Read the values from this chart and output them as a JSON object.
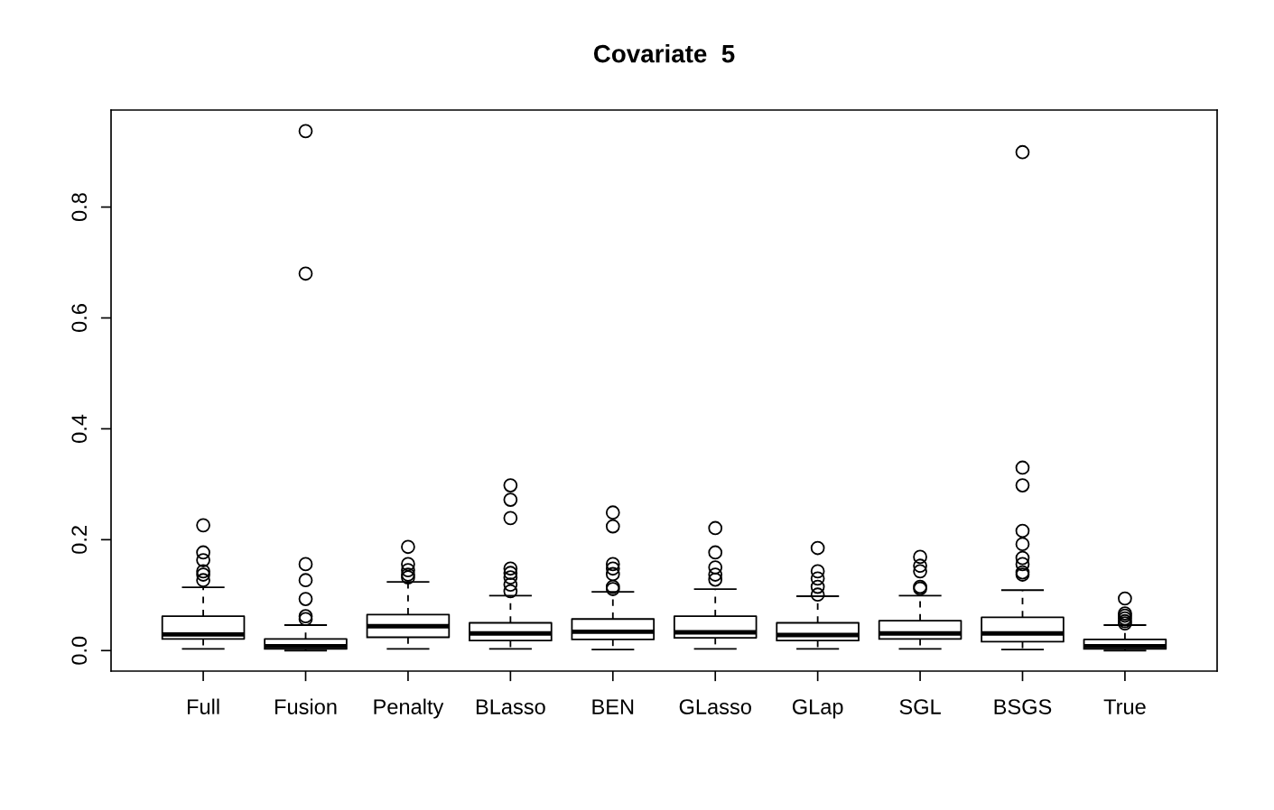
{
  "chart_data": {
    "type": "box",
    "title": "Covariate  5",
    "categories": [
      "Full",
      "Fusion",
      "Penalty",
      "BLasso",
      "BEN",
      "GLasso",
      "GLap",
      "SGL",
      "BSGS",
      "True"
    ],
    "boxes": [
      {
        "low": 0.003,
        "q1": 0.021,
        "median": 0.029,
        "q3": 0.062,
        "high": 0.114,
        "outliers": [
          0.226,
          0.177,
          0.163,
          0.143,
          0.137,
          0.127
        ]
      },
      {
        "low": 0.0,
        "q1": 0.003,
        "median": 0.008,
        "q3": 0.021,
        "high": 0.046,
        "outliers": [
          0.937,
          0.68,
          0.156,
          0.127,
          0.093,
          0.062,
          0.057
        ]
      },
      {
        "low": 0.003,
        "q1": 0.024,
        "median": 0.044,
        "q3": 0.065,
        "high": 0.124,
        "outliers": [
          0.187,
          0.156,
          0.145,
          0.137,
          0.132
        ]
      },
      {
        "low": 0.003,
        "q1": 0.018,
        "median": 0.031,
        "q3": 0.05,
        "high": 0.099,
        "outliers": [
          0.298,
          0.272,
          0.239,
          0.148,
          0.14,
          0.132,
          0.119,
          0.107
        ]
      },
      {
        "low": 0.002,
        "q1": 0.02,
        "median": 0.034,
        "q3": 0.057,
        "high": 0.106,
        "outliers": [
          0.249,
          0.224,
          0.156,
          0.148,
          0.138,
          0.115,
          0.111
        ]
      },
      {
        "low": 0.003,
        "q1": 0.023,
        "median": 0.033,
        "q3": 0.062,
        "high": 0.111,
        "outliers": [
          0.221,
          0.177,
          0.15,
          0.137,
          0.128
        ]
      },
      {
        "low": 0.003,
        "q1": 0.018,
        "median": 0.028,
        "q3": 0.05,
        "high": 0.098,
        "outliers": [
          0.185,
          0.143,
          0.13,
          0.115,
          0.101
        ]
      },
      {
        "low": 0.003,
        "q1": 0.021,
        "median": 0.031,
        "q3": 0.054,
        "high": 0.099,
        "outliers": [
          0.169,
          0.153,
          0.143,
          0.115,
          0.112
        ]
      },
      {
        "low": 0.002,
        "q1": 0.016,
        "median": 0.031,
        "q3": 0.06,
        "high": 0.109,
        "outliers": [
          0.899,
          0.33,
          0.298,
          0.216,
          0.192,
          0.167,
          0.156,
          0.141,
          0.137
        ]
      },
      {
        "low": 0.0,
        "q1": 0.003,
        "median": 0.008,
        "q3": 0.02,
        "high": 0.046,
        "outliers": [
          0.094,
          0.067,
          0.063,
          0.058,
          0.053,
          0.049
        ]
      }
    ],
    "ylim": [
      -0.037,
      0.975
    ],
    "yticks": [
      {
        "value": 0,
        "label": "0.0"
      },
      {
        "value": 0.2,
        "label": "0.2"
      },
      {
        "value": 0.4,
        "label": "0.4"
      },
      {
        "value": 0.6,
        "label": "0.6"
      },
      {
        "value": 0.8,
        "label": "0.8"
      }
    ],
    "grid": false
  }
}
